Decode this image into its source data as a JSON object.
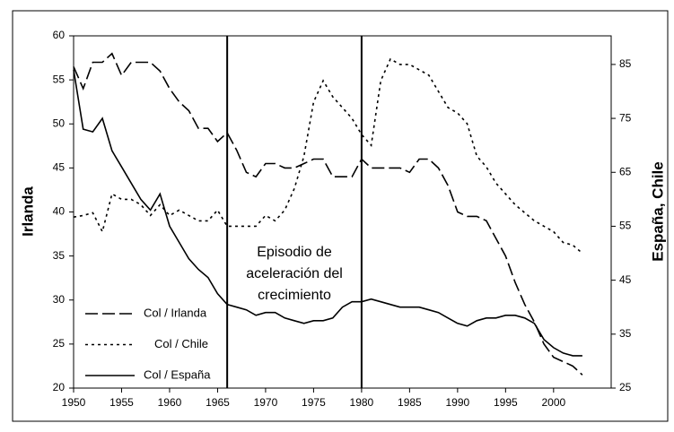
{
  "chart_data": {
    "type": "line",
    "x": [
      1950,
      1951,
      1952,
      1953,
      1954,
      1955,
      1956,
      1957,
      1958,
      1959,
      1960,
      1961,
      1962,
      1963,
      1964,
      1965,
      1966,
      1967,
      1968,
      1969,
      1970,
      1971,
      1972,
      1973,
      1974,
      1975,
      1976,
      1977,
      1978,
      1979,
      1980,
      1981,
      1982,
      1983,
      1984,
      1985,
      1986,
      1987,
      1988,
      1989,
      1990,
      1991,
      1992,
      1993,
      1994,
      1995,
      1996,
      1997,
      1998,
      1999,
      2000,
      2001,
      2002,
      2003
    ],
    "series": [
      {
        "name": "Col / Irlanda",
        "color": "#000000",
        "dash": "14 5",
        "axis": "y",
        "values": [
          56.5,
          54,
          57,
          57,
          58,
          55.5,
          57,
          57,
          57,
          56,
          54,
          52.5,
          51.5,
          49.5,
          49.5,
          48,
          49,
          47,
          44.5,
          44,
          45.5,
          45.5,
          45,
          45,
          45.5,
          46,
          46,
          44,
          44,
          44,
          46,
          45,
          45,
          45,
          45,
          44.5,
          46,
          46,
          45,
          43,
          40,
          39.5,
          39.5,
          39,
          37,
          35,
          32,
          29.5,
          27.5,
          25,
          23.5,
          23,
          22.5,
          21.5
        ]
      },
      {
        "name": "Col / Chile",
        "color": "#000000",
        "dash": "3 4",
        "axis": "y2",
        "values": [
          56.7,
          57,
          57.5,
          54,
          61,
          60,
          60,
          59,
          57,
          59,
          57,
          58,
          57,
          56,
          56,
          58,
          55,
          55,
          55,
          55,
          57,
          56,
          58,
          62,
          68,
          78,
          82,
          79,
          77,
          75,
          72,
          70,
          82,
          86,
          85,
          85,
          84,
          83,
          80,
          77,
          76,
          74,
          68,
          66,
          63,
          61,
          59,
          57.5,
          56,
          55,
          54,
          52,
          51.5,
          50
        ]
      },
      {
        "name": "Col / España",
        "color": "#000000",
        "dash": "none",
        "axis": "y2",
        "values": [
          84,
          73,
          72.5,
          75,
          69,
          66,
          63,
          60,
          58,
          61,
          55,
          52,
          49,
          47,
          45.5,
          42.5,
          40.5,
          40,
          39.5,
          38.5,
          39,
          39,
          38,
          37.5,
          37,
          37.5,
          37.5,
          38,
          40,
          41,
          41,
          41.5,
          41,
          40.5,
          40,
          40,
          40,
          39.5,
          39,
          38,
          37,
          36.5,
          37.5,
          38,
          38,
          38.5,
          38.5,
          38,
          37,
          34,
          32.5,
          31.5,
          31,
          31
        ]
      }
    ],
    "xlim": [
      1950,
      2006
    ],
    "xticks": [
      1950,
      1955,
      1960,
      1965,
      1970,
      1975,
      1980,
      1985,
      1990,
      1995,
      2000
    ],
    "ylim": [
      20,
      60
    ],
    "yticks": [
      20,
      25,
      30,
      35,
      40,
      45,
      50,
      55,
      60
    ],
    "y2lim": [
      25,
      90.3
    ],
    "y2ticks": [
      25,
      35,
      45,
      55,
      65,
      75,
      85
    ],
    "ylabel": "Irlanda",
    "y2label": "España, Chile",
    "vlines": [
      1966,
      1980
    ],
    "annotation": [
      "Episodio de",
      "aceleración del",
      "crecimiento"
    ]
  }
}
